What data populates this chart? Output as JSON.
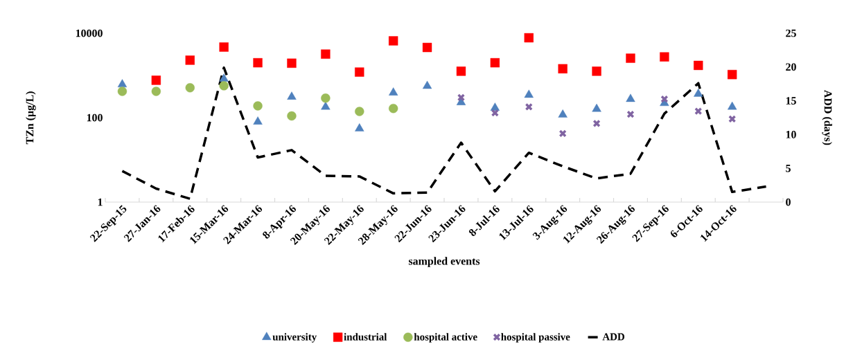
{
  "chart_data": {
    "type": "scatter",
    "xlabel": "sampled events",
    "ylabel": "TZn (µg/L)",
    "y2label": "ADD (days)",
    "categories": [
      "22-Sep-15",
      "27-Jan-16",
      "17-Feb-16",
      "15-Mar-16",
      "24-Mar-16",
      "8-Apr-16",
      "20-May-16",
      "22-May-16",
      "28-May-16",
      "22-Jun-16",
      "23-Jun-16",
      "8-Jul-16",
      "13-Jul-16",
      "3-Aug-16",
      "12-Aug-16",
      "26-Aug-16",
      "27-Sep-16",
      "6-Oct-16",
      "14-Oct-16",
      null
    ],
    "series": [
      {
        "name": "university",
        "marker": "triangle",
        "color": "#4f81bd",
        "values": [
          610,
          null,
          null,
          830,
          80,
          310,
          180,
          55,
          390,
          560,
          230,
          170,
          345,
          117,
          160,
          275,
          220,
          365,
          180,
          null
        ]
      },
      {
        "name": "industrial",
        "marker": "square",
        "color": "#ff0000",
        "values": [
          null,
          770,
          2300,
          4700,
          2000,
          1950,
          3200,
          1200,
          6600,
          4600,
          1260,
          2000,
          7800,
          1440,
          1260,
          2560,
          2750,
          1730,
          1050,
          null
        ]
      },
      {
        "name": "hospital active",
        "marker": "circle",
        "color": "#9bbb59",
        "values": [
          420,
          420,
          510,
          570,
          190,
          110,
          290,
          140,
          165,
          null,
          null,
          null,
          null,
          null,
          null,
          null,
          null,
          null,
          null,
          null
        ]
      },
      {
        "name": "hospital passive",
        "marker": "cross",
        "color": "#8064a2",
        "values": [
          null,
          null,
          null,
          null,
          null,
          null,
          null,
          null,
          null,
          null,
          300,
          130,
          180,
          42,
          73,
          120,
          275,
          143,
          93,
          null
        ]
      },
      {
        "name": "ADD",
        "type": "line",
        "axis": "y2",
        "marker": "none",
        "line_style": "dashed",
        "color": "#000000",
        "values": [
          4.6,
          2.0,
          0.5,
          19.9,
          6.6,
          7.7,
          3.9,
          3.8,
          1.3,
          1.4,
          8.8,
          1.6,
          7.3,
          5.3,
          3.5,
          4.2,
          13.1,
          17.6,
          1.5,
          2.3
        ]
      }
    ],
    "log": "y",
    "ylim": [
      1,
      10000
    ],
    "yticks": [
      1,
      100,
      10000
    ],
    "y2lim": [
      0,
      25
    ],
    "y2ticks": [
      0,
      5,
      10,
      15,
      20,
      25
    ],
    "grid": false,
    "legend": "bottom"
  }
}
